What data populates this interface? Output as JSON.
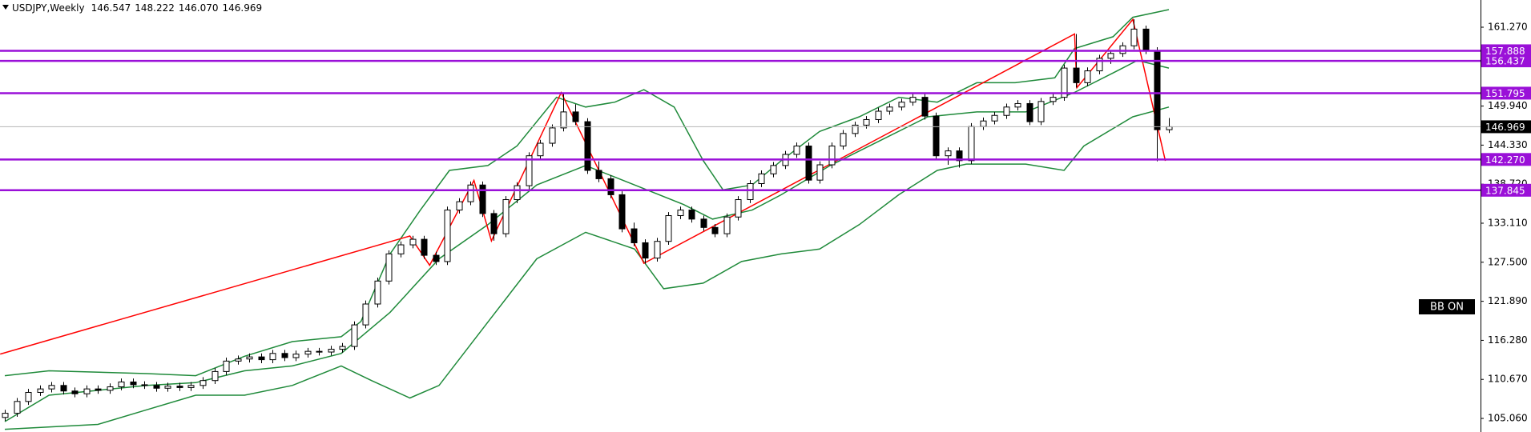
{
  "chart_data": {
    "type": "candlestick",
    "title": "USDJPY,Weekly",
    "header_values": [
      146.547,
      148.222,
      {
        "value": 146.07,
        "label": "146.070"
      },
      146.969
    ],
    "ylim": [
      103.11,
      165.18
    ],
    "yticks": [
      {
        "value": 161.27,
        "label": "161.270"
      },
      {
        "value": 149.94,
        "label": "149.940"
      },
      {
        "value": 144.33,
        "label": "144.330"
      },
      {
        "value": 138.72,
        "label": "138.720"
      },
      {
        "value": 133.11,
        "label": "133.110"
      },
      {
        "value": 127.5,
        "label": "127.500"
      },
      {
        "value": 121.89,
        "label": "121.890"
      },
      {
        "value": 116.28,
        "label": "116.280"
      },
      {
        "value": 110.67,
        "label": "110.670"
      },
      {
        "value": 105.06,
        "label": "105.060"
      }
    ],
    "up_color": "#ffffff",
    "down_color": "#000000",
    "candles": {
      "open": [
        105.2,
        105.8,
        107.5,
        108.8,
        109.3,
        109.8,
        109.0,
        108.6,
        109.3,
        109.1,
        109.6,
        110.3,
        109.9,
        109.8,
        109.4,
        109.7,
        109.5,
        109.8,
        110.5,
        111.8,
        113.3,
        113.6,
        113.9,
        113.5,
        114.4,
        113.8,
        114.3,
        114.7,
        114.6,
        115.0,
        115.4,
        118.5,
        121.5,
        124.8,
        128.7,
        130.0,
        130.8,
        128.5,
        127.6,
        135.0,
        136.2,
        138.6,
        134.5,
        131.6,
        136.5,
        138.5,
        142.8,
        144.6,
        146.8,
        149.1,
        147.7,
        140.7,
        139.5,
        137.2,
        132.3,
        130.3,
        128.1,
        130.5,
        134.2,
        135.0,
        133.7,
        132.5,
        131.6,
        134.0,
        136.5,
        138.8,
        140.2,
        141.4,
        143.0,
        144.2,
        139.3,
        141.5,
        144.2,
        146.0,
        147.2,
        148.0,
        149.2,
        149.8,
        150.5,
        151.2,
        148.5,
        142.8,
        143.5,
        142.1,
        147.0,
        147.8,
        148.6,
        149.8,
        150.3,
        147.7,
        150.6,
        151.2,
        155.4,
        153.3,
        155.0,
        156.8,
        157.5,
        158.6,
        161.0,
        157.9,
        146.547
      ],
      "high": [
        106.3,
        108.0,
        109.3,
        109.8,
        110.3,
        110.3,
        109.5,
        109.8,
        109.8,
        110.1,
        110.8,
        110.8,
        110.4,
        110.3,
        110.2,
        110.2,
        110.3,
        111.0,
        112.3,
        113.8,
        114.1,
        114.4,
        114.4,
        114.9,
        114.9,
        114.8,
        115.2,
        115.2,
        115.5,
        115.9,
        119.0,
        122.0,
        125.3,
        129.2,
        130.5,
        131.3,
        131.3,
        129.0,
        135.5,
        136.7,
        139.1,
        139.1,
        135.0,
        137.0,
        139.0,
        143.3,
        145.1,
        147.3,
        151.9,
        150.2,
        148.2,
        142.0,
        140.0,
        137.7,
        133.2,
        130.8,
        131.0,
        134.7,
        135.5,
        135.5,
        134.2,
        133.0,
        134.5,
        137.0,
        139.3,
        140.7,
        141.9,
        143.5,
        144.7,
        144.7,
        142.0,
        144.7,
        146.5,
        147.7,
        148.5,
        149.7,
        150.3,
        151.0,
        151.7,
        151.7,
        149.0,
        144.0,
        144.0,
        147.5,
        148.3,
        149.1,
        150.3,
        150.8,
        150.8,
        151.1,
        151.7,
        155.9,
        160.3,
        155.5,
        157.3,
        158.0,
        159.1,
        162.4,
        161.5,
        158.4,
        148.222
      ],
      "low": [
        104.7,
        105.3,
        107.0,
        108.3,
        108.8,
        108.5,
        108.1,
        108.1,
        108.6,
        108.6,
        109.1,
        109.4,
        109.3,
        108.9,
        108.9,
        109.0,
        109.0,
        109.3,
        110.0,
        111.3,
        112.8,
        113.1,
        113.0,
        113.0,
        113.3,
        113.3,
        113.8,
        114.1,
        114.1,
        114.5,
        114.9,
        118.0,
        121.0,
        124.3,
        128.2,
        129.5,
        128.0,
        127.1,
        127.1,
        134.5,
        135.7,
        134.0,
        130.6,
        131.1,
        136.0,
        138.0,
        142.3,
        144.1,
        146.3,
        147.2,
        140.2,
        139.0,
        136.7,
        131.8,
        129.8,
        127.3,
        127.6,
        130.0,
        133.7,
        133.2,
        132.0,
        131.1,
        131.1,
        133.5,
        136.0,
        138.3,
        139.7,
        140.9,
        142.5,
        138.8,
        138.8,
        141.0,
        143.7,
        145.5,
        146.7,
        147.5,
        148.7,
        149.3,
        150.0,
        148.0,
        142.3,
        141.5,
        141.1,
        141.6,
        146.5,
        147.3,
        148.1,
        149.3,
        147.2,
        147.2,
        150.1,
        150.7,
        152.6,
        152.8,
        154.5,
        156.0,
        157.0,
        158.1,
        157.4,
        142.0,
        146.07
      ],
      "close": [
        105.8,
        107.5,
        108.8,
        109.3,
        109.8,
        109.0,
        108.6,
        109.3,
        109.1,
        109.6,
        110.3,
        109.9,
        109.8,
        109.4,
        109.7,
        109.5,
        109.8,
        110.5,
        111.8,
        113.3,
        113.6,
        113.9,
        113.5,
        114.4,
        113.8,
        114.3,
        114.7,
        114.6,
        115.0,
        115.4,
        118.5,
        121.5,
        124.8,
        128.7,
        130.0,
        130.8,
        128.5,
        127.6,
        135.0,
        136.2,
        138.6,
        134.5,
        131.6,
        136.5,
        138.5,
        142.8,
        144.6,
        146.8,
        149.1,
        147.7,
        140.7,
        139.5,
        137.2,
        132.3,
        130.3,
        128.1,
        130.5,
        134.2,
        135.0,
        133.7,
        132.5,
        131.6,
        134.0,
        136.5,
        138.8,
        140.2,
        141.4,
        143.0,
        144.2,
        139.3,
        141.5,
        144.2,
        146.0,
        147.2,
        148.0,
        149.2,
        149.8,
        150.5,
        151.2,
        148.5,
        142.8,
        143.5,
        142.1,
        147.0,
        147.8,
        148.6,
        149.8,
        150.3,
        147.7,
        150.6,
        151.2,
        155.4,
        153.3,
        155.0,
        156.8,
        157.5,
        158.6,
        161.0,
        157.9,
        146.547,
        146.969
      ]
    },
    "bands": [
      {
        "color": "#1f8a3a",
        "x": [
          0,
          3.8,
          12.2,
          16.4,
          20.6,
          24.7,
          28.9,
          30.6,
          33.1,
          35.7,
          38.2,
          41.5,
          44,
          47.4,
          49.9,
          52.4,
          54.9,
          57.5,
          60,
          61.7,
          64.2,
          66.7,
          70,
          73.4,
          76.8,
          80.1,
          83.5,
          86.8,
          90.2,
          91.9,
          95.2,
          96.9,
          100
        ],
        "values": [
          111.2,
          111.9,
          111.5,
          111.2,
          114.0,
          116.1,
          116.8,
          119.0,
          128.7,
          135.0,
          140.7,
          141.4,
          144.2,
          151.2,
          149.8,
          150.5,
          152.3,
          149.8,
          142.1,
          137.9,
          138.6,
          142.1,
          146.3,
          148.4,
          151.2,
          150.5,
          153.3,
          153.3,
          154.0,
          158.2,
          159.9,
          162.7,
          163.8
        ]
      },
      {
        "color": "#1f8a3a",
        "x": [
          0,
          3.8,
          12.2,
          16.4,
          20.6,
          24.7,
          28.9,
          33.1,
          37.3,
          41.5,
          45.7,
          49.9,
          54.1,
          58.3,
          60.8,
          64.2,
          66.7,
          70.9,
          75.1,
          79.3,
          83.5,
          87.7,
          91.9,
          95.2,
          97.3,
          100
        ],
        "values": [
          104.6,
          108.4,
          109.8,
          110.2,
          111.9,
          112.6,
          114.4,
          120.3,
          128.0,
          132.9,
          138.6,
          141.4,
          138.6,
          135.8,
          133.7,
          135.0,
          137.2,
          141.4,
          144.9,
          148.4,
          149.1,
          149.1,
          151.9,
          154.7,
          156.5,
          155.4
        ]
      },
      {
        "color": "#1f8a3a",
        "x": [
          0,
          8,
          12.2,
          16.4,
          20.6,
          24.7,
          28.9,
          31.5,
          34.8,
          37.3,
          41.5,
          45.7,
          49.9,
          54.1,
          56.6,
          60,
          63.3,
          66.7,
          70,
          73.4,
          76.8,
          80.1,
          82.6,
          87.7,
          91,
          92.7,
          96.9,
          100
        ],
        "values": [
          103.5,
          104.2,
          106.3,
          108.4,
          108.4,
          109.8,
          112.6,
          110.5,
          108.0,
          109.8,
          118.9,
          128.0,
          131.8,
          129.4,
          123.7,
          124.5,
          127.6,
          128.7,
          129.4,
          132.9,
          137.2,
          140.7,
          141.6,
          141.6,
          140.7,
          144.2,
          148.4,
          149.8
        ]
      }
    ],
    "zigzag": {
      "color": "#ff0000",
      "x": [
        -0.4,
        34.8,
        36.5,
        40.3,
        41.8,
        47.8,
        54.9,
        91.9,
        92.1,
        96.9,
        99.7
      ],
      "values": [
        114.31,
        131.27,
        127.07,
        139.26,
        130.57,
        151.88,
        127.35,
        160.29,
        152.58,
        162.39,
        142.07
      ]
    },
    "level_color": "#9a10d8",
    "levels": [
      157.888,
      156.437,
      151.795,
      {
        "value": 142.27,
        "label": "142.270"
      },
      137.845
    ],
    "current_price": 146.969,
    "annotation": "BB ON"
  }
}
